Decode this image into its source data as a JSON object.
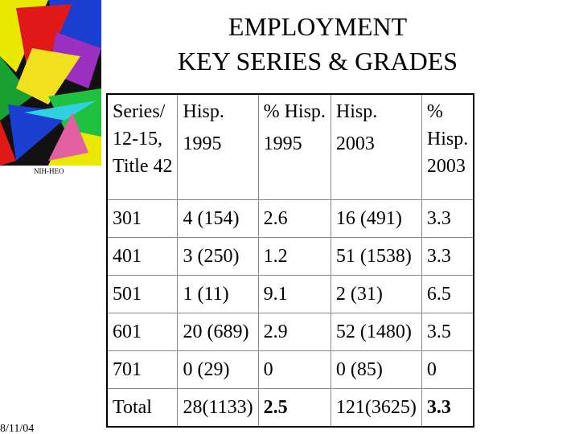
{
  "header": {
    "title_lines": [
      "EMPLOYMENT",
      "KEY SERIES & GRADES"
    ],
    "logo_caption": "NIH-HEO"
  },
  "table": {
    "header": [
      [
        "Series/",
        "12-15,",
        "Title 42"
      ],
      [
        "Hisp.",
        "1995"
      ],
      [
        "% Hisp.",
        "1995"
      ],
      [
        "Hisp.",
        "2003"
      ],
      [
        "%",
        "Hisp.",
        "2003"
      ]
    ],
    "rows": [
      [
        "301",
        "4 (154)",
        "2.6",
        "16 (491)",
        "3.3"
      ],
      [
        "401",
        "3 (250)",
        "1.2",
        "51 (1538)",
        "3.3"
      ],
      [
        "501",
        "1 (11)",
        "9.1",
        "2 (31)",
        "6.5"
      ],
      [
        "601",
        "20 (689)",
        "2.9",
        "52 (1480)",
        "3.5"
      ],
      [
        "701",
        "0 (29)",
        "0",
        "0 (85)",
        "0"
      ],
      [
        "Total",
        "28(1133)",
        "2.5",
        "121(3625)",
        "3.3"
      ]
    ]
  },
  "footer": {
    "date": "8/11/04"
  }
}
